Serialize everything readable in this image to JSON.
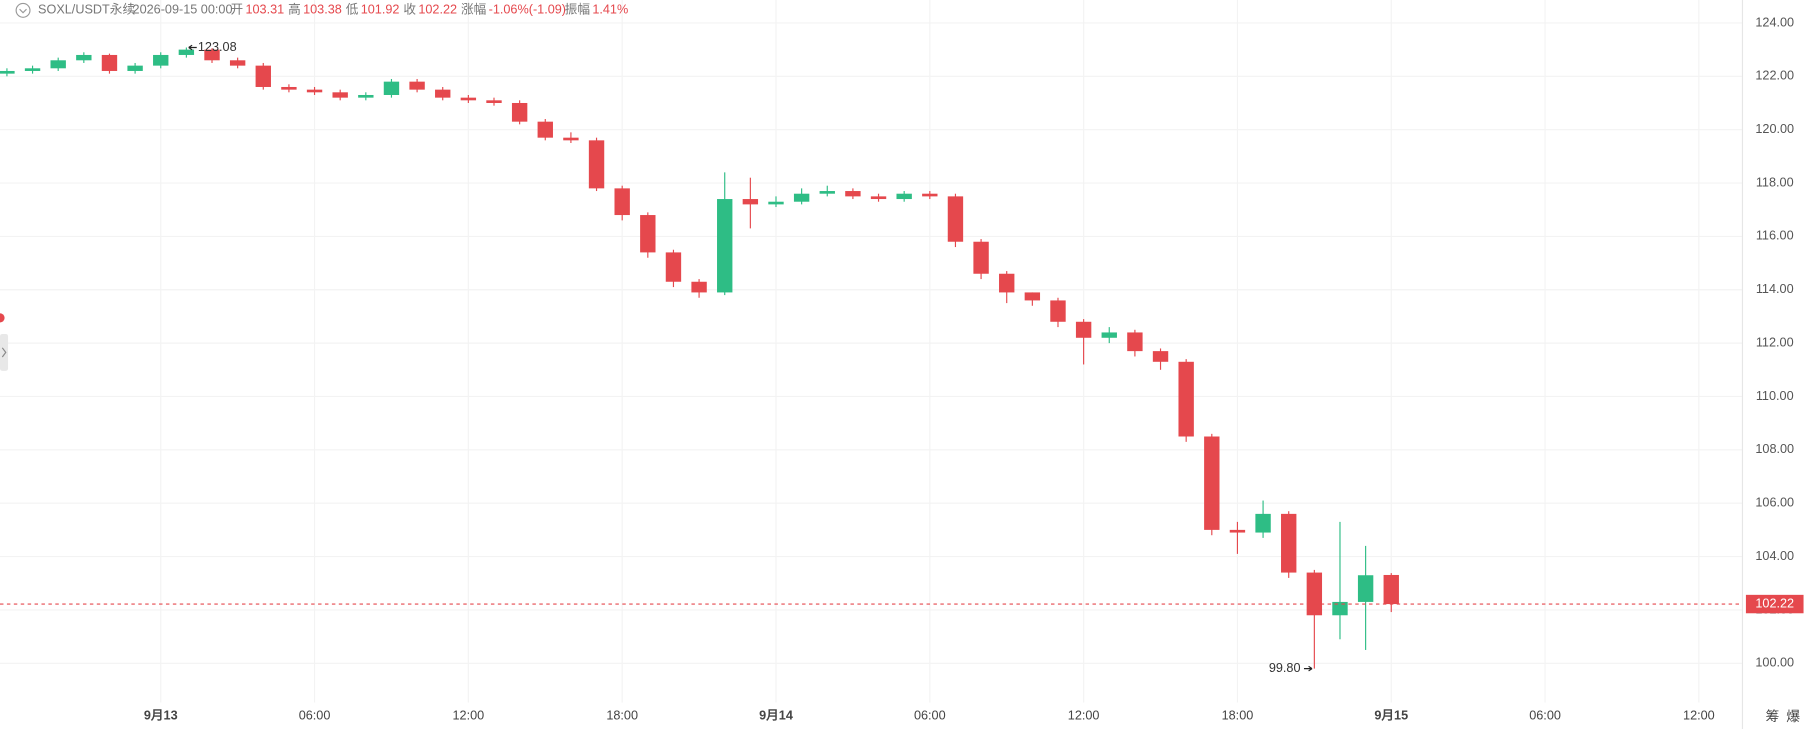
{
  "header": {
    "symbol": "SOXL/USDT永续",
    "time": "2026-09-15 00:00",
    "open_label": "开",
    "open": 103.31,
    "high_label": "高",
    "high": 103.38,
    "low_label": "低",
    "low": 101.92,
    "close_label": "收",
    "close": 102.22,
    "change_label": "涨幅",
    "change": "-1.06%(-1.09)",
    "amplitude_label": "振幅",
    "amplitude": "1.41%"
  },
  "chart_data": {
    "type": "candlestick",
    "open": [
      122.1,
      122.2,
      122.3,
      122.6,
      122.8,
      122.2,
      122.4,
      122.8,
      123.0,
      122.6,
      122.4,
      121.6,
      121.5,
      121.4,
      121.2,
      121.3,
      121.8,
      121.5,
      121.2,
      121.1,
      121.0,
      120.3,
      119.7,
      119.6,
      117.8,
      116.8,
      115.4,
      114.3,
      113.9,
      117.4,
      117.2,
      117.3,
      117.6,
      117.7,
      117.5,
      117.4,
      117.6,
      117.5,
      115.8,
      114.6,
      113.9,
      113.6,
      112.8,
      112.2,
      112.4,
      111.7,
      111.3,
      108.5,
      105.0,
      104.9,
      105.6,
      103.4,
      101.8,
      102.3,
      103.31
    ],
    "high": [
      122.3,
      122.4,
      122.7,
      122.9,
      122.85,
      122.5,
      122.9,
      123.08,
      123.05,
      122.7,
      122.5,
      121.7,
      121.6,
      121.5,
      121.4,
      121.9,
      121.9,
      121.6,
      121.3,
      121.2,
      121.1,
      120.4,
      119.9,
      119.7,
      117.9,
      116.9,
      115.5,
      114.4,
      118.4,
      118.2,
      117.5,
      117.8,
      117.9,
      117.8,
      117.6,
      117.7,
      117.7,
      117.6,
      115.9,
      114.7,
      113.9,
      113.7,
      112.9,
      112.6,
      112.5,
      111.8,
      111.4,
      108.6,
      105.3,
      106.1,
      105.7,
      103.5,
      105.3,
      104.4,
      103.38
    ],
    "low": [
      122.0,
      122.1,
      122.2,
      122.5,
      122.1,
      122.1,
      122.3,
      122.7,
      122.5,
      122.3,
      121.5,
      121.4,
      121.3,
      121.1,
      121.1,
      121.2,
      121.4,
      121.1,
      121.0,
      120.9,
      120.2,
      119.6,
      119.5,
      117.7,
      116.6,
      115.2,
      114.1,
      113.7,
      113.8,
      116.3,
      117.1,
      117.2,
      117.5,
      117.4,
      117.3,
      117.3,
      117.4,
      115.6,
      114.4,
      113.5,
      113.4,
      112.6,
      111.2,
      112.0,
      111.5,
      111.0,
      108.3,
      104.8,
      104.1,
      104.7,
      103.2,
      99.8,
      100.9,
      100.5,
      101.92
    ],
    "close": [
      122.2,
      122.3,
      122.6,
      122.8,
      122.2,
      122.4,
      122.8,
      123.0,
      122.6,
      122.4,
      121.6,
      121.5,
      121.4,
      121.2,
      121.3,
      121.8,
      121.5,
      121.2,
      121.1,
      121.0,
      120.3,
      119.7,
      119.6,
      117.8,
      116.8,
      115.4,
      114.3,
      113.9,
      117.4,
      117.2,
      117.3,
      117.6,
      117.7,
      117.5,
      117.4,
      117.6,
      117.5,
      115.8,
      114.6,
      113.9,
      113.6,
      112.8,
      112.2,
      112.4,
      111.7,
      111.3,
      108.5,
      105.0,
      104.9,
      105.6,
      103.4,
      101.8,
      102.3,
      103.3,
      102.22
    ],
    "up_color": "#2ebd85",
    "down_color": "#e5484d",
    "xlim": [
      -0.27,
      67.7
    ],
    "xticks": [
      {
        "value": 6,
        "label": "9月13"
      },
      {
        "value": 12,
        "label": "06:00"
      },
      {
        "value": 18,
        "label": "12:00"
      },
      {
        "value": 24,
        "label": "18:00"
      },
      {
        "value": 30,
        "label": "9月14"
      },
      {
        "value": 36,
        "label": "06:00"
      },
      {
        "value": 42,
        "label": "12:00"
      },
      {
        "value": 48,
        "label": "18:00"
      },
      {
        "value": 54,
        "label": "9月15"
      },
      {
        "value": 60,
        "label": "06:00"
      },
      {
        "value": 66,
        "label": "12:00"
      }
    ],
    "ylim": [
      98.53,
      124.86
    ],
    "yticks": [
      {
        "value": 100,
        "label": "100.00"
      },
      {
        "value": 102,
        "label": "102.00"
      },
      {
        "value": 104,
        "label": "104.00"
      },
      {
        "value": 106,
        "label": "106.00"
      },
      {
        "value": 108,
        "label": "108.00"
      },
      {
        "value": 110,
        "label": "110.00"
      },
      {
        "value": 112,
        "label": "112.00"
      },
      {
        "value": 114,
        "label": "114.00"
      },
      {
        "value": 116,
        "label": "116.00"
      },
      {
        "value": 118,
        "label": "118.00"
      },
      {
        "value": 120,
        "label": "120.00"
      },
      {
        "value": 122,
        "label": "122.00"
      },
      {
        "value": 124,
        "label": "124.00"
      }
    ],
    "grid": true,
    "last_price": 102.22,
    "max_annotation": 123.08,
    "min_annotation": {
      "value": 99.8,
      "label": "99.80"
    }
  },
  "toolbar": {
    "buttons": [
      "筹",
      "爆"
    ]
  }
}
